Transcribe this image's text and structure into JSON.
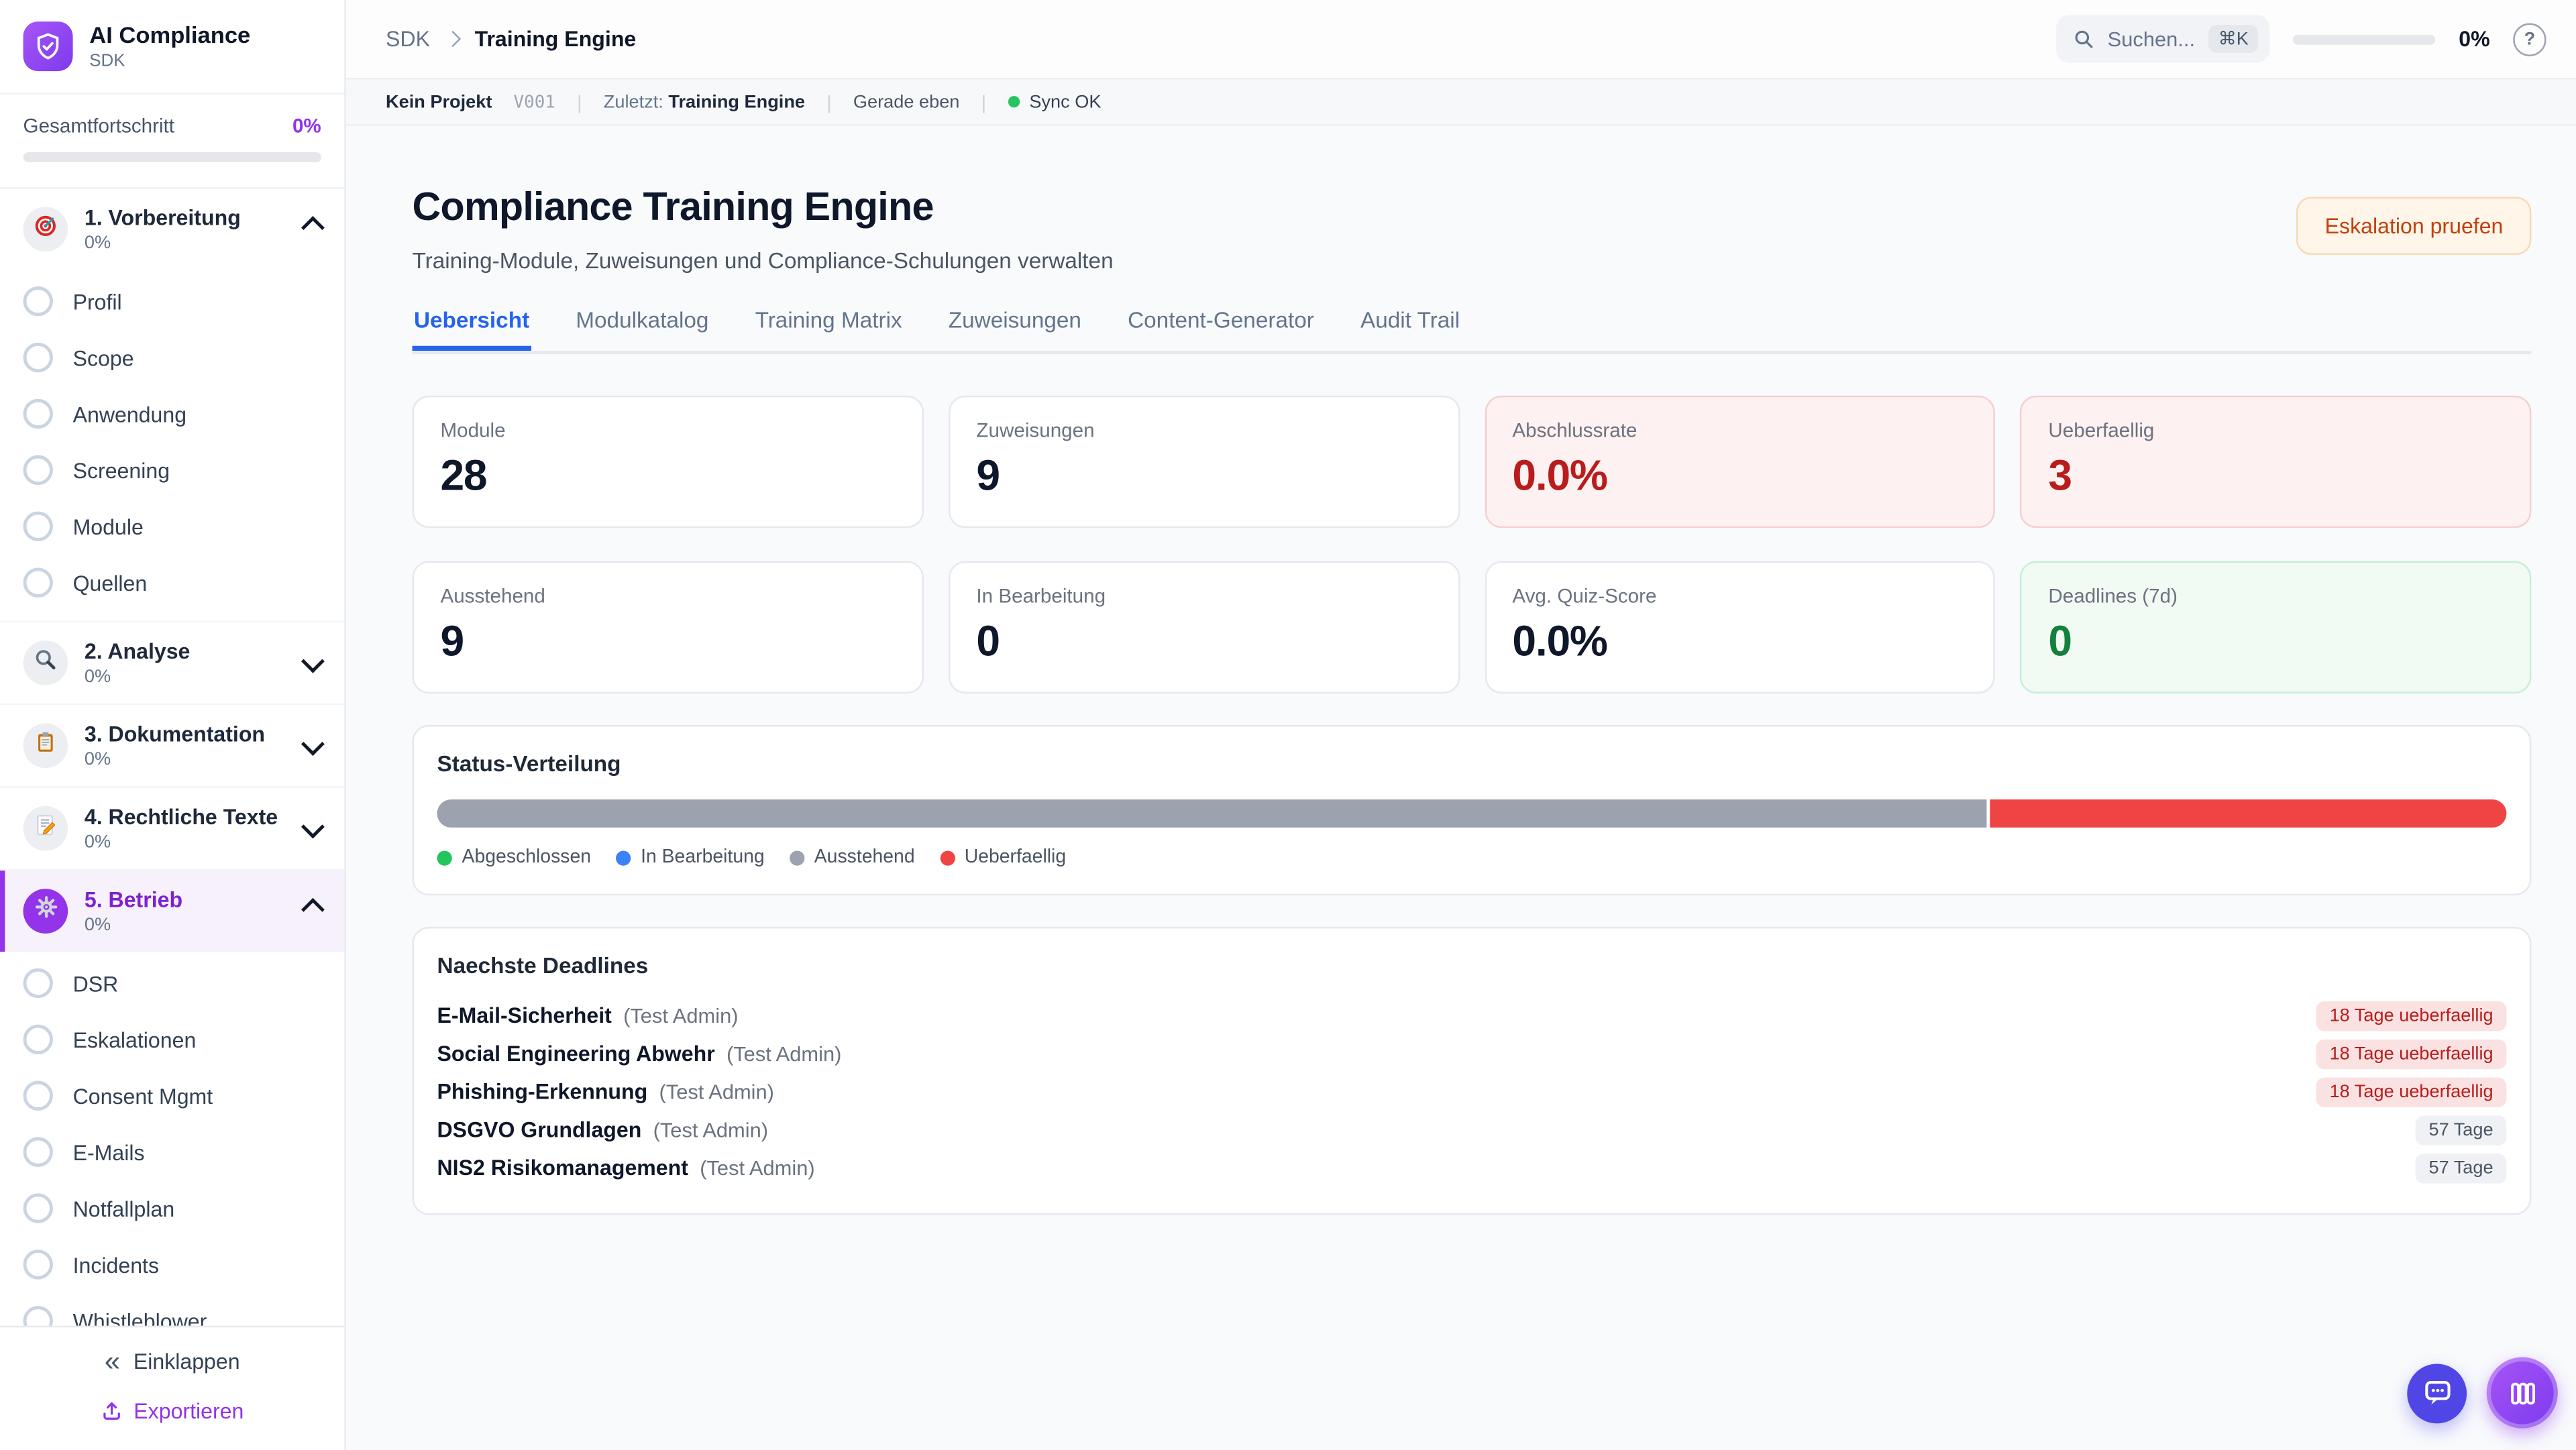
{
  "sidebar": {
    "app_title": "AI Compliance",
    "app_subtitle": "SDK",
    "progress_label": "Gesamtfortschritt",
    "progress_value": "0%",
    "progress_percent": 0,
    "sections": [
      {
        "title": "1. Vorbereitung",
        "percent": "0%",
        "icon": "target",
        "expanded": true,
        "active": false,
        "items": [
          "Profil",
          "Scope",
          "Anwendung",
          "Screening",
          "Module",
          "Quellen"
        ]
      },
      {
        "title": "2. Analyse",
        "percent": "0%",
        "icon": "magnifier",
        "expanded": false,
        "active": false,
        "items": []
      },
      {
        "title": "3. Dokumentation",
        "percent": "0%",
        "icon": "clipboard",
        "expanded": false,
        "active": false,
        "items": []
      },
      {
        "title": "4. Rechtliche Texte",
        "percent": "0%",
        "icon": "memo",
        "expanded": false,
        "active": false,
        "items": []
      },
      {
        "title": "5. Betrieb",
        "percent": "0%",
        "icon": "gear",
        "expanded": true,
        "active": true,
        "items": [
          "DSR",
          "Eskalationen",
          "Consent Mgmt",
          "E-Mails",
          "Notfallplan",
          "Incidents",
          "Whistleblower"
        ]
      }
    ],
    "collapse_label": "Einklappen",
    "export_label": "Exportieren"
  },
  "topbar": {
    "breadcrumb_root": "SDK",
    "breadcrumb_current": "Training Engine",
    "search_placeholder": "Suchen...",
    "search_kbd": "⌘K",
    "progress_value": "0%",
    "progress_percent": 0
  },
  "statusbar": {
    "project": "Kein Projekt",
    "version": "V001",
    "last_label": "Zuletzt:",
    "last_value": "Training Engine",
    "time": "Gerade eben",
    "sync": "Sync OK",
    "sync_color": "#22C55E"
  },
  "main": {
    "title": "Compliance Training Engine",
    "subtitle": "Training-Module, Zuweisungen und Compliance-Schulungen verwalten",
    "action_button": "Eskalation pruefen",
    "tabs": [
      {
        "label": "Uebersicht",
        "active": true
      },
      {
        "label": "Modulkatalog",
        "active": false
      },
      {
        "label": "Training Matrix",
        "active": false
      },
      {
        "label": "Zuweisungen",
        "active": false
      },
      {
        "label": "Content-Generator",
        "active": false
      },
      {
        "label": "Audit Trail",
        "active": false
      }
    ],
    "stats": [
      {
        "label": "Module",
        "value": "28",
        "variant": "default"
      },
      {
        "label": "Zuweisungen",
        "value": "9",
        "variant": "default"
      },
      {
        "label": "Abschlussrate",
        "value": "0.0%",
        "variant": "danger"
      },
      {
        "label": "Ueberfaellig",
        "value": "3",
        "variant": "danger"
      },
      {
        "label": "Ausstehend",
        "value": "9",
        "variant": "default"
      },
      {
        "label": "In Bearbeitung",
        "value": "0",
        "variant": "default"
      },
      {
        "label": "Avg. Quiz-Score",
        "value": "0.0%",
        "variant": "default"
      },
      {
        "label": "Deadlines (7d)",
        "value": "0",
        "variant": "success"
      }
    ],
    "status_distribution": {
      "title": "Status-Verteilung",
      "segments": [
        {
          "name": "Ausstehend",
          "percent": 75,
          "color": "#9CA3AF"
        },
        {
          "name": "Ueberfaellig",
          "percent": 25,
          "color": "#EF4444"
        }
      ],
      "legend": [
        {
          "label": "Abgeschlossen",
          "color": "#22C55E"
        },
        {
          "label": "In Bearbeitung",
          "color": "#3B82F6"
        },
        {
          "label": "Ausstehend",
          "color": "#9CA3AF"
        },
        {
          "label": "Ueberfaellig",
          "color": "#EF4444"
        }
      ]
    },
    "deadlines": {
      "title": "Naechste Deadlines",
      "rows": [
        {
          "module": "E-Mail-Sicherheit",
          "assignee": "(Test Admin)",
          "badge": "18 Tage ueberfaellig",
          "badge_variant": "danger"
        },
        {
          "module": "Social Engineering Abwehr",
          "assignee": "(Test Admin)",
          "badge": "18 Tage ueberfaellig",
          "badge_variant": "danger"
        },
        {
          "module": "Phishing-Erkennung",
          "assignee": "(Test Admin)",
          "badge": "18 Tage ueberfaellig",
          "badge_variant": "danger"
        },
        {
          "module": "DSGVO Grundlagen",
          "assignee": "(Test Admin)",
          "badge": "57 Tage",
          "badge_variant": "neutral"
        },
        {
          "module": "NIS2 Risikomanagement",
          "assignee": "(Test Admin)",
          "badge": "57 Tage",
          "badge_variant": "neutral"
        }
      ]
    }
  },
  "colors": {
    "accent_purple": "#9333EA",
    "accent_blue": "#2563EB",
    "danger_red": "#B91C1C",
    "success_green": "#15803D",
    "warning_orange": "#C2410C"
  }
}
